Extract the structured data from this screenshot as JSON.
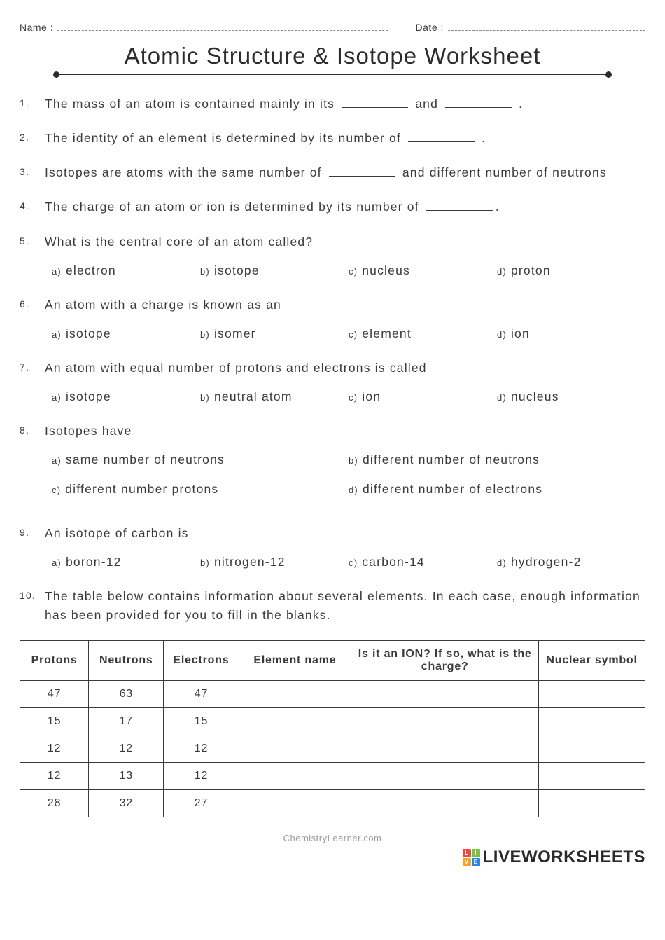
{
  "header": {
    "name_label": "Name :",
    "date_label": "Date :",
    "title": "Atomic Structure & Isotope Worksheet"
  },
  "questions": [
    {
      "type": "fill",
      "segments": [
        "The mass of an atom is contained mainly in its ",
        "__",
        " and ",
        "__",
        " ."
      ]
    },
    {
      "type": "fill",
      "segments": [
        "The identity of an element is determined by its number of ",
        "__",
        " ."
      ]
    },
    {
      "type": "fill",
      "segments": [
        "Isotopes are atoms with the same number of ",
        "__",
        " and different number of neutrons"
      ]
    },
    {
      "type": "fill",
      "segments": [
        "The charge of an atom or ion is determined by its number of ",
        "__",
        "."
      ]
    },
    {
      "type": "mc4",
      "stem": "What is the central core of an atom called?",
      "options": [
        "electron",
        "isotope",
        "nucleus",
        "proton"
      ]
    },
    {
      "type": "mc4",
      "stem": "An atom with a charge is known as an",
      "options": [
        "isotope",
        "isomer",
        "element",
        "ion"
      ]
    },
    {
      "type": "mc4",
      "stem": "An atom with equal number of protons and electrons is called",
      "options": [
        "isotope",
        "neutral atom",
        "ion",
        "nucleus"
      ]
    },
    {
      "type": "mc2",
      "stem": "Isotopes have",
      "options": [
        "same number of neutrons",
        "different number of neutrons",
        "different number protons",
        "different number of electrons"
      ]
    },
    {
      "type": "mc4",
      "stem": "An isotope of carbon is",
      "options": [
        "boron-12",
        "nitrogen-12",
        "carbon-14",
        "hydrogen-2"
      ]
    },
    {
      "type": "table",
      "stem": "The table below contains information about several elements. In each case, enough information has been provided for you to fill in the blanks."
    }
  ],
  "option_labels": [
    "a)",
    "b)",
    "c)",
    "d)"
  ],
  "table": {
    "columns": [
      "Protons",
      "Neutrons",
      "Electrons",
      "Element name",
      "Is it an ION? If so, what is the charge?",
      "Nuclear symbol"
    ],
    "col_widths": [
      "11%",
      "12%",
      "12%",
      "18%",
      "30%",
      "17%"
    ],
    "rows": [
      [
        "47",
        "63",
        "47",
        "",
        "",
        ""
      ],
      [
        "15",
        "17",
        "15",
        "",
        "",
        ""
      ],
      [
        "12",
        "12",
        "12",
        "",
        "",
        ""
      ],
      [
        "12",
        "13",
        "12",
        "",
        "",
        ""
      ],
      [
        "28",
        "32",
        "27",
        "",
        "",
        ""
      ]
    ]
  },
  "footer": {
    "credit": "ChemistryLearner.com",
    "brand": "LIVEWORKSHEETS",
    "logo_colors": [
      "#e94b3c",
      "#7bbf44",
      "#f5a623",
      "#2e86de"
    ],
    "logo_letters": [
      "L",
      "I",
      "V",
      "E"
    ]
  }
}
